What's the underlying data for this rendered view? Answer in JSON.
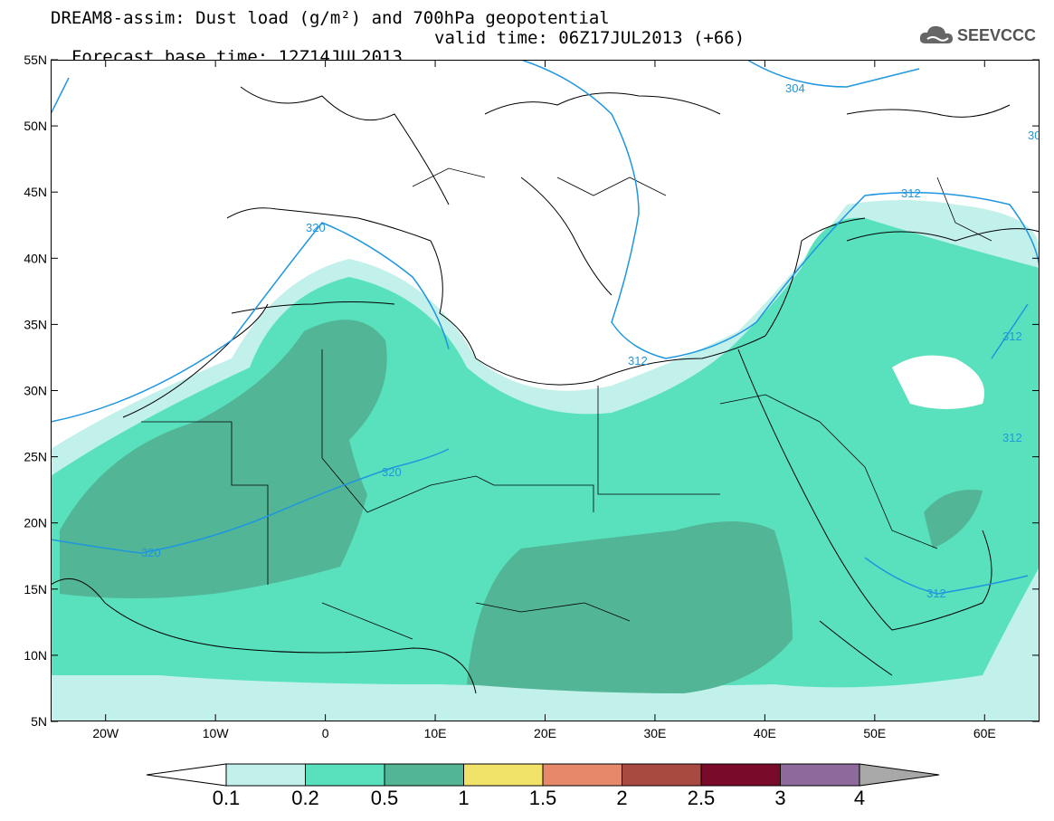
{
  "title": {
    "line1": "DREAM8-assim: Dust load (g/m²) and 700hPa geopotential",
    "line2_left": "Forecast base time: 12Z14JUL2013",
    "line2_right": "valid time: 06Z17JUL2013 (+66)"
  },
  "logo": {
    "text": "SEEVCCC",
    "icon": "cloud-icon"
  },
  "map": {
    "lat_labels": [
      "55N",
      "50N",
      "45N",
      "40N",
      "35N",
      "30N",
      "25N",
      "20N",
      "15N",
      "10N",
      "5N"
    ],
    "lon_labels": [
      "20W",
      "10W",
      "0",
      "10E",
      "20E",
      "30E",
      "40E",
      "50E",
      "60E"
    ],
    "lon_range": [
      -25,
      65
    ],
    "lat_range": [
      5,
      55
    ],
    "contour_labels": [
      "304",
      "312",
      "312",
      "312",
      "312",
      "312",
      "320",
      "320",
      "320",
      "30"
    ],
    "colors": {
      "land_line": "#000000",
      "contour": "#1e96e0",
      "dust_0_1": "#c2f0ea",
      "dust_0_2": "#58e1bc",
      "dust_0_5": "#52b596"
    }
  },
  "colorbar": {
    "labels": [
      "0.1",
      "0.2",
      "0.5",
      "1",
      "1.5",
      "2",
      "2.5",
      "3",
      "4"
    ],
    "colors": [
      "#ffffff",
      "#c2f0ea",
      "#58e1bc",
      "#52b596",
      "#f1e36a",
      "#e8886a",
      "#a84a40",
      "#7a0a2a",
      "#8c6a9c",
      "#a8a8a8"
    ]
  }
}
